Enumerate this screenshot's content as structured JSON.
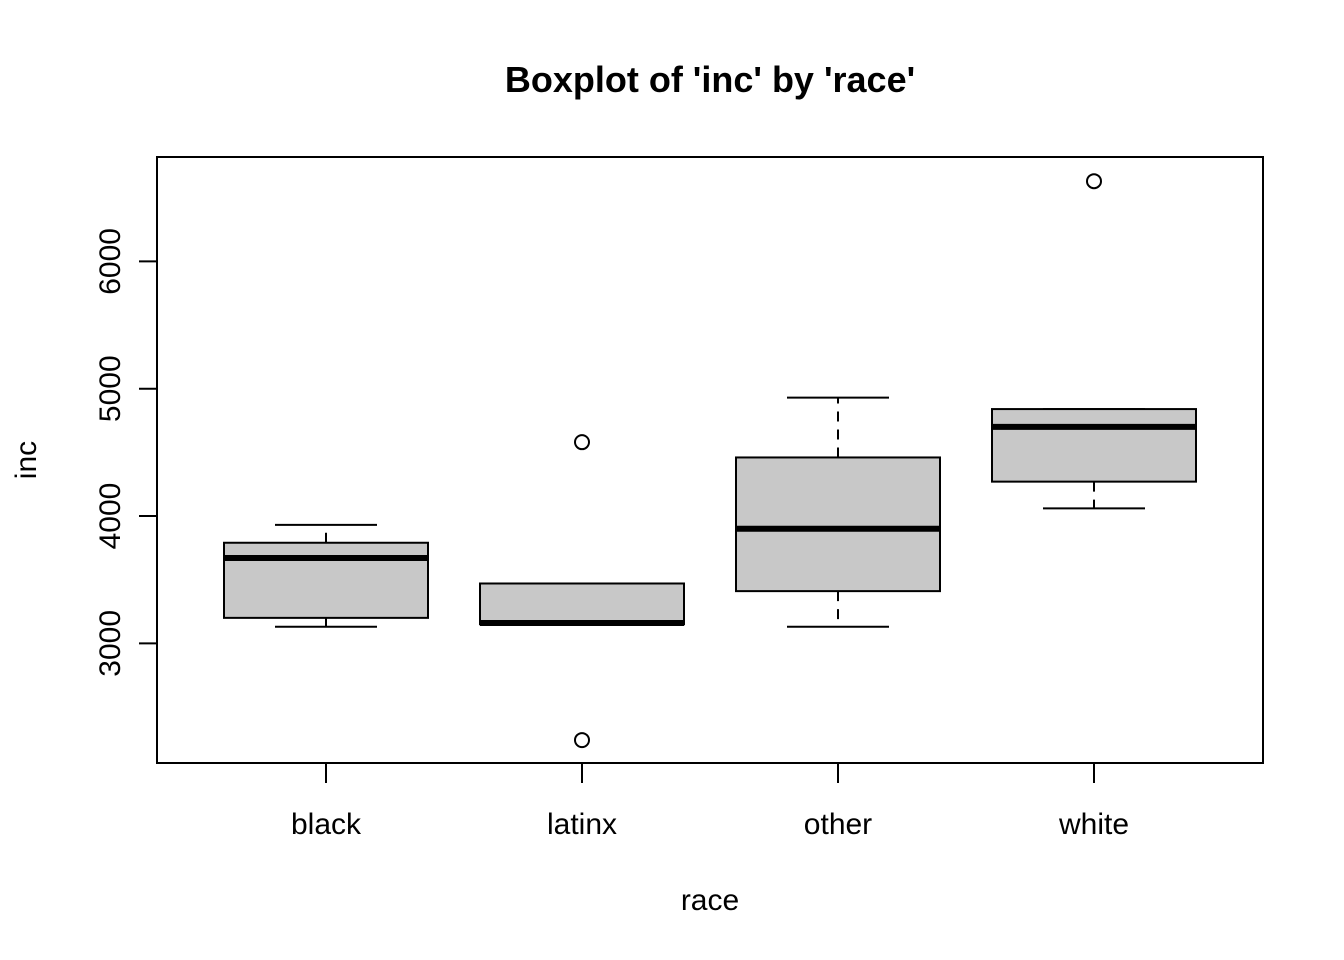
{
  "chart_data": {
    "type": "boxplot",
    "title": "Boxplot of 'inc' by 'race'",
    "xlabel": "race",
    "ylabel": "inc",
    "categories": [
      "black",
      "latinx",
      "other",
      "white"
    ],
    "ylim": [
      2060,
      6820
    ],
    "yticks": [
      3000,
      4000,
      5000,
      6000
    ],
    "ytick_labels": [
      "3000",
      "4000",
      "5000",
      "6000"
    ],
    "grid": false,
    "box_fill": "#c8c8c8",
    "line_color": "#000000",
    "boxes": [
      {
        "category": "black",
        "whisker_low": 3130,
        "q1": 3200,
        "median": 3670,
        "q3": 3790,
        "whisker_high": 3930,
        "outliers": []
      },
      {
        "category": "latinx",
        "whisker_low": 3150,
        "q1": 3150,
        "median": 3160,
        "q3": 3470,
        "whisker_high": 3470,
        "outliers": [
          4580,
          2240
        ]
      },
      {
        "category": "other",
        "whisker_low": 3130,
        "q1": 3410,
        "median": 3900,
        "q3": 4460,
        "whisker_high": 4930,
        "outliers": []
      },
      {
        "category": "white",
        "whisker_low": 4060,
        "q1": 4270,
        "median": 4700,
        "q3": 4840,
        "whisker_high": 4840,
        "outliers": [
          6630
        ]
      }
    ]
  }
}
